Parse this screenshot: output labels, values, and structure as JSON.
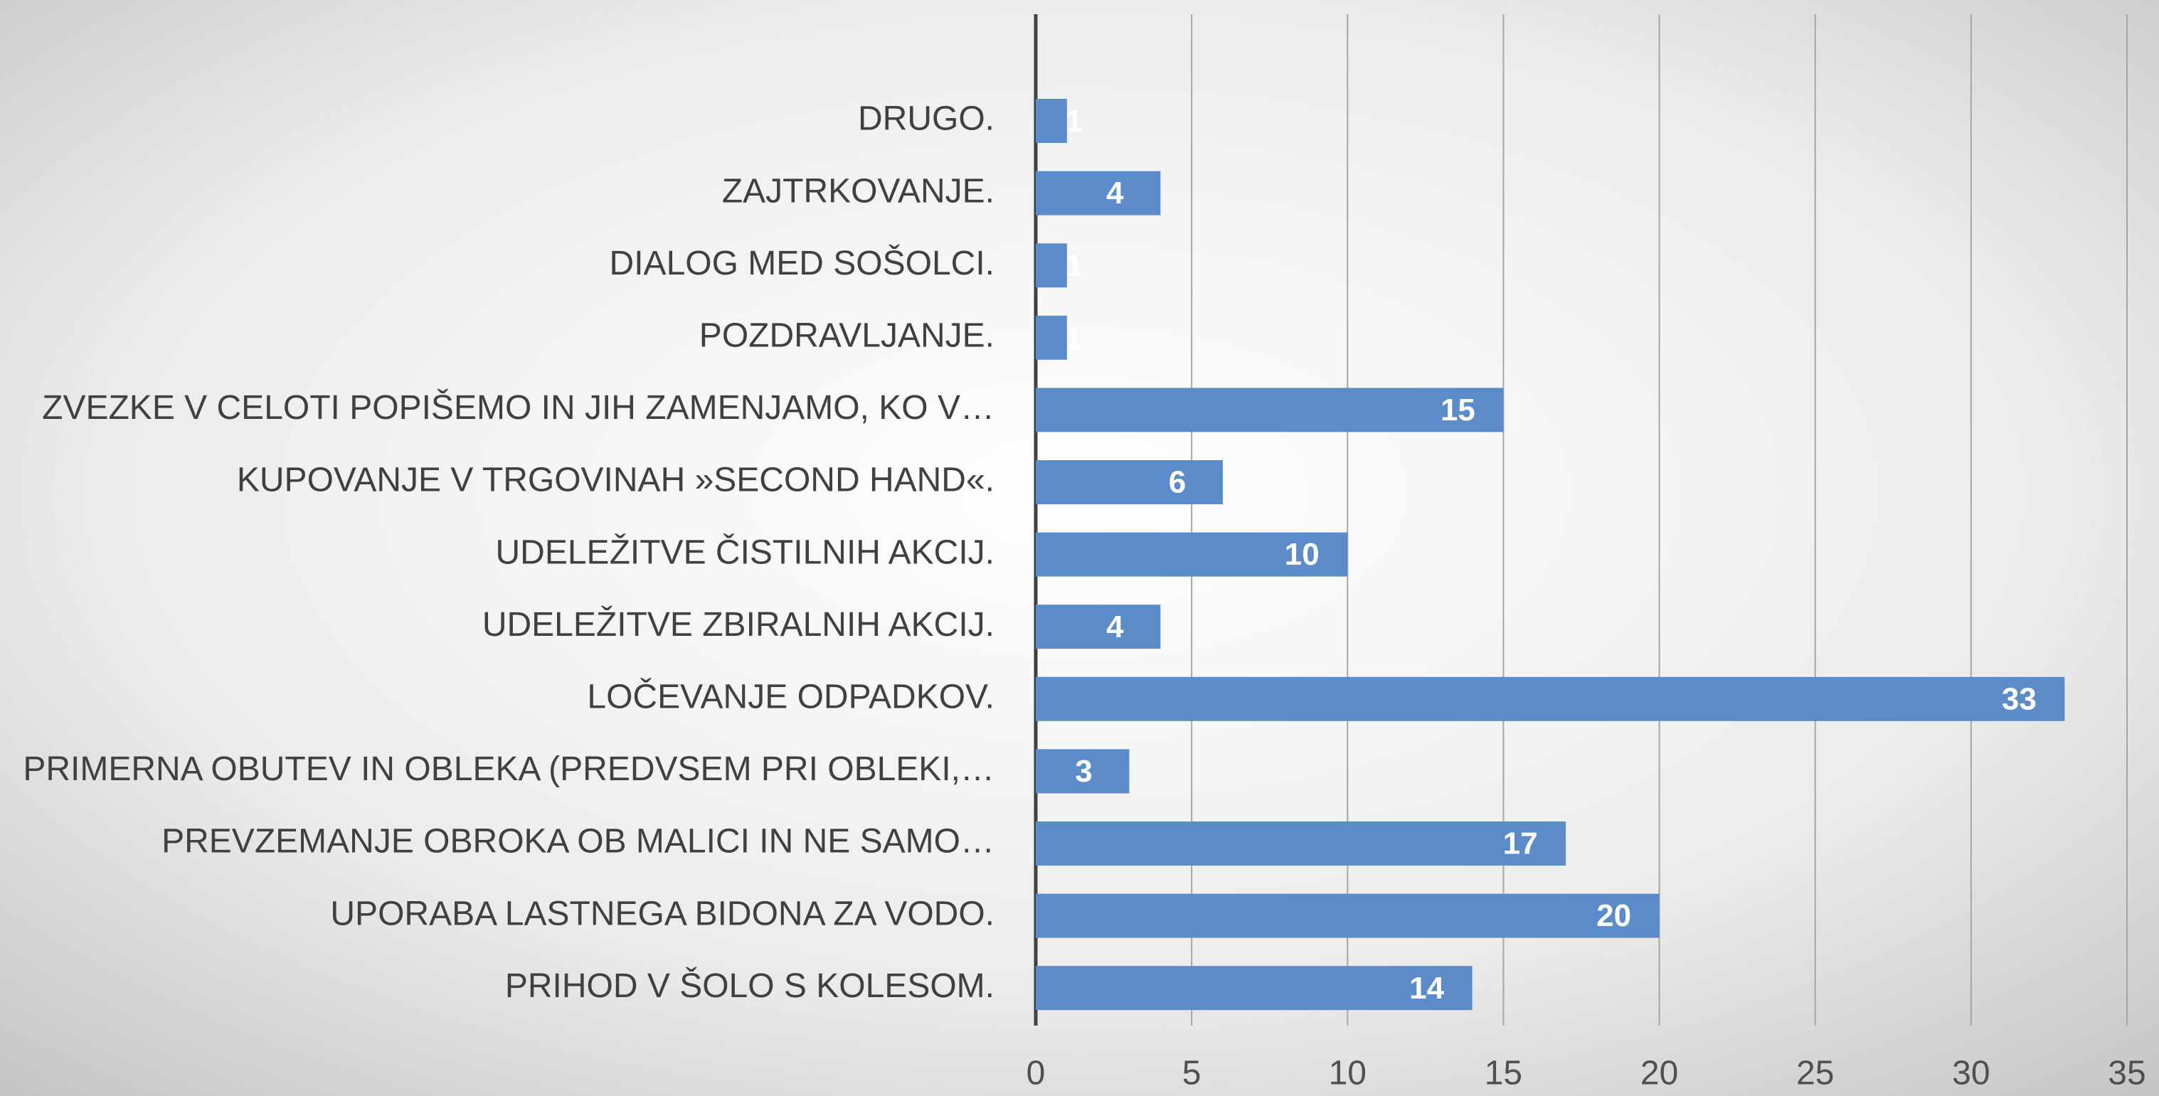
{
  "chart_data": {
    "type": "bar",
    "orientation": "horizontal",
    "categories": [
      "DRUGO.",
      "ZAJTRKOVANJE.",
      "DIALOG MED SOŠOLCI.",
      "POZDRAVLJANJE.",
      "ZVEZKE V CELOTI POPIŠEMO IN JIH ZAMENJAMO, KO V…",
      "KUPOVANJE V TRGOVINAH »SECOND HAND«.",
      "UDELEŽITVE ČISTILNIH AKCIJ.",
      "UDELEŽITVE ZBIRALNIH AKCIJ.",
      "LOČEVANJE ODPADKOV.",
      "PRIMERNA OBUTEV IN OBLEKA (PREDVSEM PRI OBLEKI,…",
      "PREVZEMANJE OBROKA OB MALICI IN NE SAMO…",
      "UPORABA LASTNEGA BIDONA ZA VODO.",
      "PRIHOD V ŠOLO S KOLESOM."
    ],
    "values": [
      1,
      4,
      1,
      1,
      15,
      6,
      10,
      4,
      33,
      3,
      17,
      20,
      14
    ],
    "color": "#5b8bc8",
    "xlim": [
      0,
      35
    ],
    "xticks": [
      0,
      5,
      10,
      15,
      20,
      25,
      30,
      35
    ],
    "grid": true
  }
}
